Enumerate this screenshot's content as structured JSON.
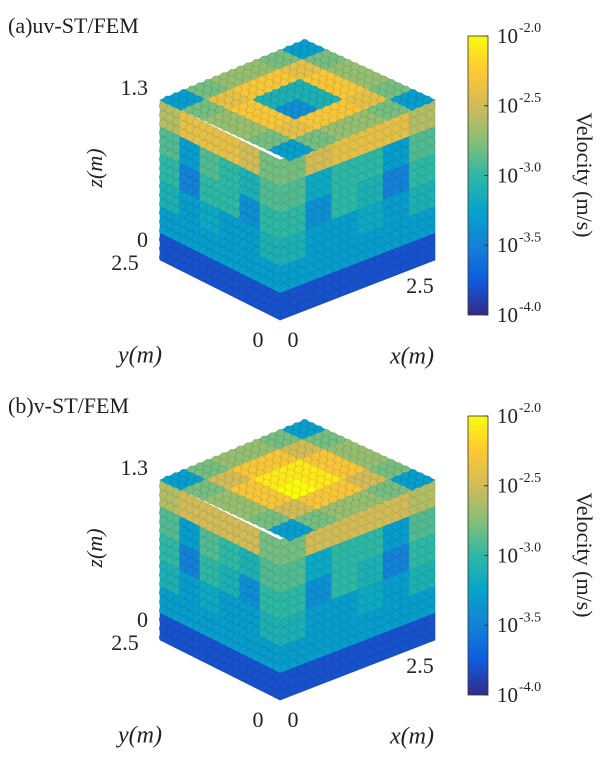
{
  "chart_data": [
    {
      "type": "scatter3d",
      "title": "(a)uv-ST/FEM",
      "xlabel": "x(m)",
      "ylabel": "y(m)",
      "zlabel": "z(m)",
      "xlim": [
        0,
        2.5
      ],
      "xticks": [
        0,
        2.5
      ],
      "ylim": [
        0,
        2.5
      ],
      "yticks": [
        2.5,
        0
      ],
      "zlim": [
        0,
        1.3
      ],
      "zticks": [
        0,
        1.3
      ],
      "colorbar_label": "Velocity (m/s)",
      "colormap": "parula",
      "log_scale": true,
      "tick_base": "10",
      "clim": [
        -4,
        -2
      ],
      "cticks": [
        {
          "value": -2,
          "label": "-2.0"
        },
        {
          "value": -2.5,
          "label": "-2.5"
        },
        {
          "value": -3,
          "label": "-3.0"
        },
        {
          "value": -3.5,
          "label": "-3.5"
        },
        {
          "value": -4,
          "label": "-4.0"
        }
      ],
      "faces": {
        "top": [
          [
            -3.3,
            -2.8,
            -2.7,
            -2.7,
            -2.8,
            -3.3
          ],
          [
            -2.8,
            -2.4,
            -2.3,
            -2.3,
            -2.4,
            -2.8
          ],
          [
            -2.7,
            -2.3,
            -3.1,
            -3.1,
            -2.3,
            -2.7
          ],
          [
            -2.7,
            -2.3,
            -3.1,
            -3.4,
            -2.3,
            -2.7
          ],
          [
            -2.8,
            -2.4,
            -2.3,
            -2.3,
            -2.4,
            -2.8
          ],
          [
            -3.3,
            -2.8,
            -2.7,
            -2.7,
            -2.8,
            -3.3
          ]
        ],
        "left": [
          [
            -2.6,
            -2.4,
            -2.4,
            -2.4,
            -2.5,
            -2.8
          ],
          [
            -2.9,
            -3.3,
            -2.9,
            -3.0,
            -3.1,
            -2.9
          ],
          [
            -3.0,
            -3.5,
            -3.0,
            -3.0,
            -3.4,
            -3.0
          ],
          [
            -3.1,
            -3.3,
            -3.2,
            -3.3,
            -3.3,
            -3.1
          ],
          [
            -3.3,
            -3.3,
            -3.3,
            -3.3,
            -3.3,
            -3.3
          ],
          [
            -3.8,
            -3.8,
            -3.8,
            -3.8,
            -3.8,
            -3.8
          ]
        ],
        "right": [
          [
            -2.8,
            -2.5,
            -2.4,
            -2.4,
            -2.4,
            -2.6
          ],
          [
            -2.9,
            -3.2,
            -3.0,
            -3.0,
            -3.3,
            -2.9
          ],
          [
            -3.0,
            -3.4,
            -3.0,
            -3.1,
            -3.5,
            -3.0
          ],
          [
            -3.1,
            -3.3,
            -3.3,
            -3.2,
            -3.3,
            -3.1
          ],
          [
            -3.3,
            -3.3,
            -3.3,
            -3.3,
            -3.3,
            -3.3
          ],
          [
            -3.8,
            -3.8,
            -3.8,
            -3.8,
            -3.8,
            -3.8
          ]
        ]
      }
    },
    {
      "type": "scatter3d",
      "title": "(b)v-ST/FEM",
      "xlabel": "x(m)",
      "ylabel": "y(m)",
      "zlabel": "z(m)",
      "xlim": [
        0,
        2.5
      ],
      "xticks": [
        0,
        2.5
      ],
      "ylim": [
        0,
        2.5
      ],
      "yticks": [
        2.5,
        0
      ],
      "zlim": [
        0,
        1.3
      ],
      "zticks": [
        0,
        1.3
      ],
      "colorbar_label": "Velocity (m/s)",
      "colormap": "parula",
      "log_scale": true,
      "tick_base": "10",
      "clim": [
        -4,
        -2
      ],
      "cticks": [
        {
          "value": -2,
          "label": "-2.0"
        },
        {
          "value": -2.5,
          "label": "-2.5"
        },
        {
          "value": -3,
          "label": "-3.0"
        },
        {
          "value": -3.5,
          "label": "-3.5"
        },
        {
          "value": -4,
          "label": "-4.0"
        }
      ],
      "faces": {
        "top": [
          [
            -3.3,
            -2.8,
            -2.7,
            -2.7,
            -2.8,
            -3.3
          ],
          [
            -2.8,
            -2.5,
            -2.3,
            -2.3,
            -2.5,
            -2.8
          ],
          [
            -2.7,
            -2.3,
            -2.1,
            -2.1,
            -2.3,
            -2.7
          ],
          [
            -2.7,
            -2.3,
            -2.1,
            -2.0,
            -2.3,
            -2.7
          ],
          [
            -2.8,
            -2.5,
            -2.3,
            -2.3,
            -2.5,
            -2.8
          ],
          [
            -3.3,
            -2.8,
            -2.7,
            -2.7,
            -2.8,
            -3.3
          ]
        ],
        "left": [
          [
            -2.6,
            -2.5,
            -2.5,
            -2.5,
            -2.5,
            -2.8
          ],
          [
            -2.9,
            -3.3,
            -2.9,
            -3.0,
            -3.1,
            -2.9
          ],
          [
            -3.0,
            -3.5,
            -3.0,
            -3.1,
            -3.4,
            -3.0
          ],
          [
            -3.1,
            -3.3,
            -3.2,
            -3.3,
            -3.3,
            -3.1
          ],
          [
            -3.3,
            -3.3,
            -3.3,
            -3.3,
            -3.3,
            -3.3
          ],
          [
            -3.8,
            -3.8,
            -3.8,
            -3.8,
            -3.8,
            -3.8
          ]
        ],
        "right": [
          [
            -2.8,
            -2.5,
            -2.5,
            -2.5,
            -2.5,
            -2.6
          ],
          [
            -2.9,
            -3.2,
            -3.0,
            -3.0,
            -3.3,
            -2.9
          ],
          [
            -3.0,
            -3.4,
            -3.0,
            -3.1,
            -3.5,
            -3.0
          ],
          [
            -3.1,
            -3.3,
            -3.3,
            -3.2,
            -3.3,
            -3.1
          ],
          [
            -3.3,
            -3.3,
            -3.3,
            -3.3,
            -3.3,
            -3.3
          ],
          [
            -3.8,
            -3.8,
            -3.8,
            -3.8,
            -3.8,
            -3.8
          ]
        ]
      }
    }
  ]
}
